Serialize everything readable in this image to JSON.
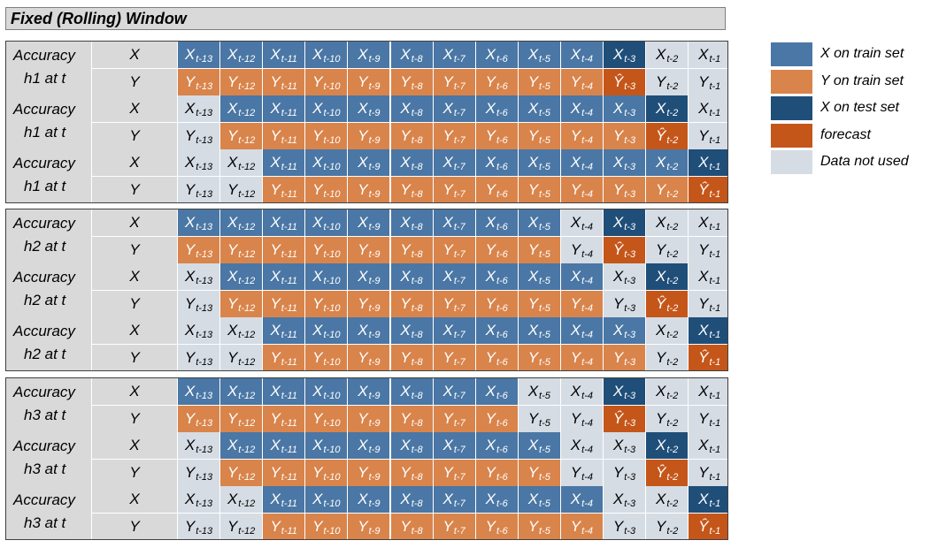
{
  "title": "Fixed (Rolling) Window",
  "colors": {
    "xtrain": "#4a77a5",
    "ytrain": "#d9844b",
    "xtest": "#1f4e79",
    "forecast": "#c5561a",
    "unused": "#d6dce4",
    "label_bg": "#d9d9d9"
  },
  "legend": [
    {
      "style": "xtrain",
      "label": "X on train set"
    },
    {
      "style": "ytrain",
      "label": "Y on train set"
    },
    {
      "style": "xtest",
      "label": "X on test set"
    },
    {
      "style": "forecast",
      "label": "forecast"
    },
    {
      "style": "unused",
      "label": "Data not used"
    }
  ],
  "subscripts": [
    "t-13",
    "t-12",
    "t-11",
    "t-10",
    "t-9",
    "t-8",
    "t-7",
    "t-6",
    "t-5",
    "t-4",
    "t-3",
    "t-2",
    "t-1"
  ],
  "row_labels": {
    "x": "X",
    "y": "Y"
  },
  "symbols": {
    "x": "X",
    "y": "Y",
    "forecast": "Ŷ"
  },
  "blocks": [
    {
      "groups": [
        {
          "label1": "Accuracy",
          "label2": "h1 at t",
          "train_start": 0,
          "train_end": 9,
          "test_col": 10
        },
        {
          "label1": "Accuracy",
          "label2": "h1 at t",
          "train_start": 1,
          "train_end": 10,
          "test_col": 11
        },
        {
          "label1": "Accuracy",
          "label2": "h1 at t",
          "train_start": 2,
          "train_end": 11,
          "test_col": 12
        }
      ]
    },
    {
      "groups": [
        {
          "label1": "Accuracy",
          "label2": "h2 at t",
          "train_start": 0,
          "train_end": 8,
          "test_col": 10
        },
        {
          "label1": "Accuracy",
          "label2": "h2 at t",
          "train_start": 1,
          "train_end": 9,
          "test_col": 11
        },
        {
          "label1": "Accuracy",
          "label2": "h2 at t",
          "train_start": 2,
          "train_end": 10,
          "test_col": 12
        }
      ]
    },
    {
      "groups": [
        {
          "label1": "Accuracy",
          "label2": "h3 at t",
          "train_start": 0,
          "train_end": 7,
          "test_col": 10
        },
        {
          "label1": "Accuracy",
          "label2": "h3 at t",
          "train_start": 1,
          "train_end": 8,
          "test_col": 11
        },
        {
          "label1": "Accuracy",
          "label2": "h3 at t",
          "train_start": 2,
          "train_end": 9,
          "test_col": 12
        }
      ]
    }
  ]
}
